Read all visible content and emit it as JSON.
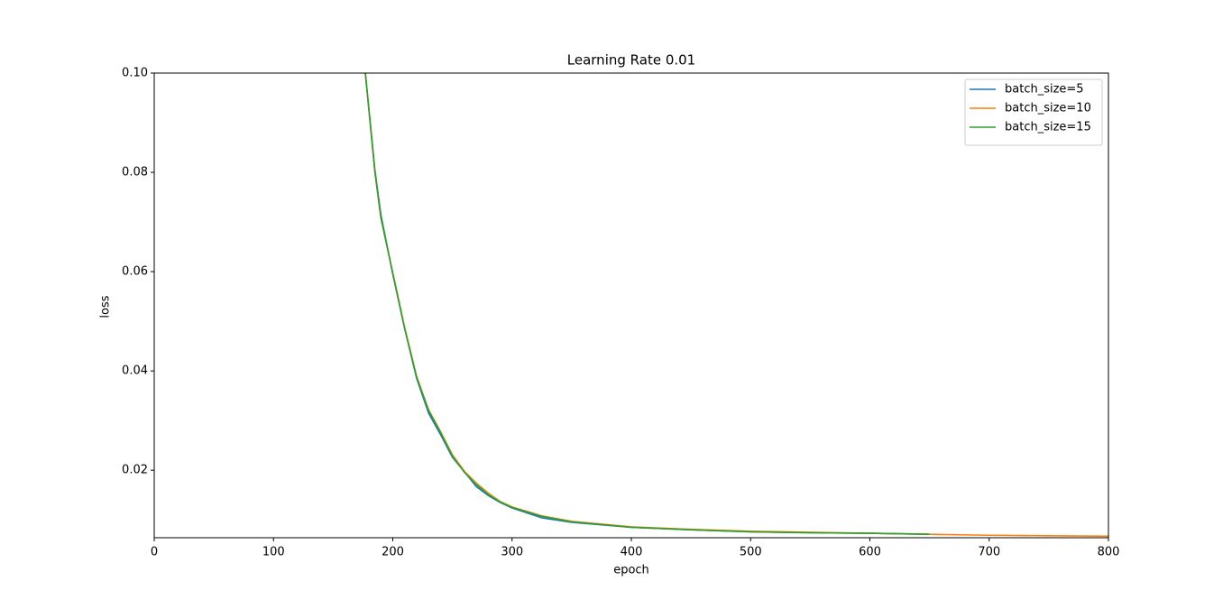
{
  "chart_data": {
    "type": "line",
    "title": "Learning Rate 0.01",
    "x_label": "epoch",
    "y_label": "loss",
    "x": [
      177,
      185,
      190,
      200,
      210,
      220,
      230,
      240,
      250,
      260,
      270,
      280,
      290,
      300,
      325,
      350,
      400,
      450,
      500,
      550,
      600,
      650,
      700,
      750,
      800
    ],
    "series": [
      {
        "name": "batch_size=5",
        "color": "#1f77b4",
        "values": [
          0.1,
          0.0805,
          0.0715,
          0.0595,
          0.0485,
          0.0385,
          0.0315,
          0.0272,
          0.0226,
          0.0197,
          0.0167,
          0.0149,
          0.0135,
          0.0124,
          0.0104,
          0.0095,
          0.0085,
          0.008,
          0.0076,
          0.0074,
          0.0073,
          0.0071,
          null,
          null,
          null
        ]
      },
      {
        "name": "batch_size=10",
        "color": "#ff7f0e",
        "values": [
          0.1,
          0.08,
          0.0708,
          0.0598,
          0.0487,
          0.0389,
          0.0322,
          0.0278,
          0.0231,
          0.0198,
          0.0174,
          0.0154,
          0.0137,
          0.0126,
          0.0108,
          0.0097,
          0.0086,
          0.0081,
          0.0077,
          0.0075,
          0.0073,
          0.0071,
          0.0069,
          0.0068,
          0.0067
        ]
      },
      {
        "name": "batch_size=15",
        "color": "#2ca02c",
        "values": [
          0.1,
          0.0802,
          0.071,
          0.0596,
          0.0485,
          0.0387,
          0.032,
          0.0276,
          0.0228,
          0.0196,
          0.0171,
          0.0151,
          0.0136,
          0.0125,
          0.0107,
          0.0096,
          0.0085,
          0.008,
          0.0076,
          0.0074,
          0.0073,
          0.0071,
          null,
          null,
          null
        ]
      }
    ],
    "xlim": [
      0,
      800
    ],
    "ylim": [
      0.0064,
      0.1
    ],
    "xticks": [
      0,
      100,
      200,
      300,
      400,
      500,
      600,
      700,
      800
    ],
    "yticks": [
      0.02,
      0.04,
      0.06,
      0.08,
      {
        "value": 0.1,
        "label": "0.10"
      }
    ],
    "grid": false,
    "legend": "upper right"
  }
}
